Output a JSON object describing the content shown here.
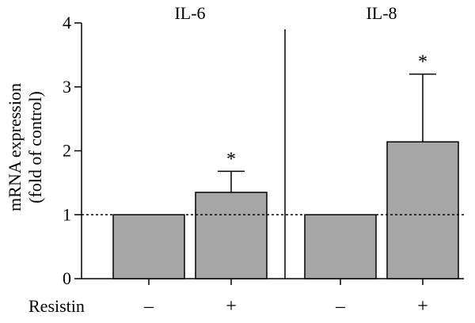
{
  "chart_data": {
    "type": "bar",
    "ylabel_lines": [
      "mRNA expression",
      "(fold of control)"
    ],
    "ylim": [
      0,
      4
    ],
    "yticks": [
      "0",
      "1",
      "2",
      "3",
      "4"
    ],
    "reference_line": 1,
    "bar_color": "#a6a6a7",
    "row_label": "Resistin",
    "groups": [
      {
        "title": "IL-6",
        "bars": [
          {
            "resistin": "–",
            "value": 1.0,
            "error": 0,
            "significance": ""
          },
          {
            "resistin": "+",
            "value": 1.35,
            "error": 0.33,
            "significance": "*"
          }
        ]
      },
      {
        "title": "IL-8",
        "bars": [
          {
            "resistin": "–",
            "value": 1.0,
            "error": 0,
            "significance": ""
          },
          {
            "resistin": "+",
            "value": 2.14,
            "error": 1.06,
            "significance": "*"
          }
        ]
      }
    ]
  }
}
